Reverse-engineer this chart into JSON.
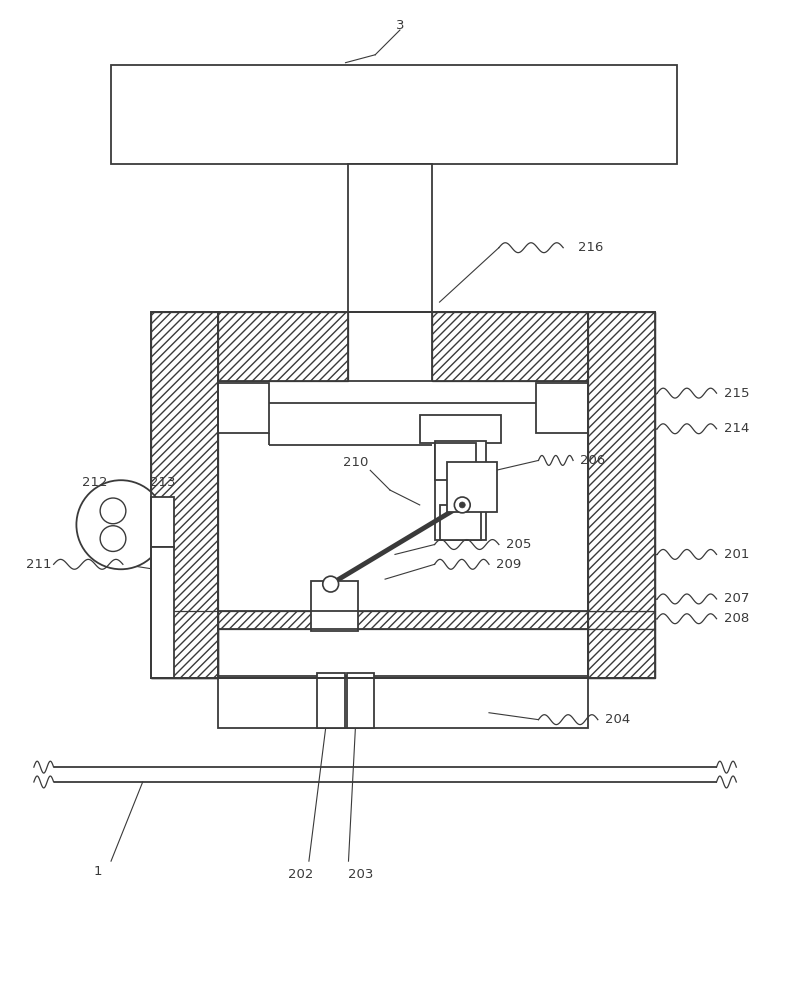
{
  "bg_color": "#ffffff",
  "lc": "#3a3a3a",
  "fig_width": 7.88,
  "fig_height": 10.0
}
